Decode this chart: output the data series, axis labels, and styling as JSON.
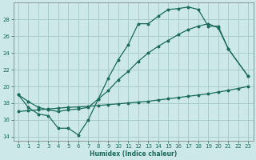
{
  "xlabel": "Humidex (Indice chaleur)",
  "bg_color": "#cce8e8",
  "grid_color": "#aacccc",
  "line_color": "#1a6b5a",
  "ylim": [
    13.5,
    30.0
  ],
  "xlim": [
    -0.5,
    23.5
  ],
  "yticks": [
    14,
    16,
    18,
    20,
    22,
    24,
    26,
    28
  ],
  "xticks": [
    0,
    1,
    2,
    3,
    4,
    5,
    6,
    7,
    8,
    9,
    10,
    11,
    12,
    13,
    14,
    15,
    16,
    17,
    18,
    19,
    20,
    21,
    22,
    23
  ],
  "line1_x": [
    0,
    1,
    2,
    3,
    4,
    5,
    6,
    7,
    8,
    9,
    10,
    11,
    12,
    13,
    14,
    15,
    16,
    17,
    18,
    19,
    20,
    21,
    23
  ],
  "line1_y": [
    19.0,
    17.5,
    16.7,
    16.5,
    15.0,
    15.0,
    14.2,
    16.0,
    18.5,
    21.0,
    23.2,
    25.0,
    27.5,
    27.5,
    28.4,
    29.2,
    29.3,
    29.5,
    29.2,
    27.2,
    27.2,
    24.5,
    21.2
  ],
  "line2_x": [
    0,
    1,
    2,
    3,
    4,
    5,
    6,
    7,
    8,
    9,
    10,
    11,
    12,
    13,
    14,
    15,
    16,
    17,
    18,
    19,
    20,
    21,
    23
  ],
  "line2_y": [
    19.0,
    18.2,
    17.5,
    17.2,
    17.0,
    17.2,
    17.3,
    17.5,
    18.5,
    19.5,
    20.8,
    21.8,
    23.0,
    24.0,
    24.8,
    25.5,
    26.2,
    26.8,
    27.2,
    27.5,
    27.0,
    24.5,
    21.2
  ],
  "line3_x": [
    0,
    1,
    2,
    3,
    4,
    5,
    6,
    7,
    8,
    9,
    10,
    11,
    12,
    13,
    14,
    15,
    16,
    17,
    18,
    19,
    20,
    21,
    22,
    23
  ],
  "line3_y": [
    17.0,
    17.1,
    17.2,
    17.3,
    17.4,
    17.5,
    17.55,
    17.62,
    17.72,
    17.82,
    17.92,
    18.02,
    18.12,
    18.22,
    18.38,
    18.52,
    18.67,
    18.82,
    18.97,
    19.12,
    19.32,
    19.52,
    19.76,
    20.0
  ]
}
